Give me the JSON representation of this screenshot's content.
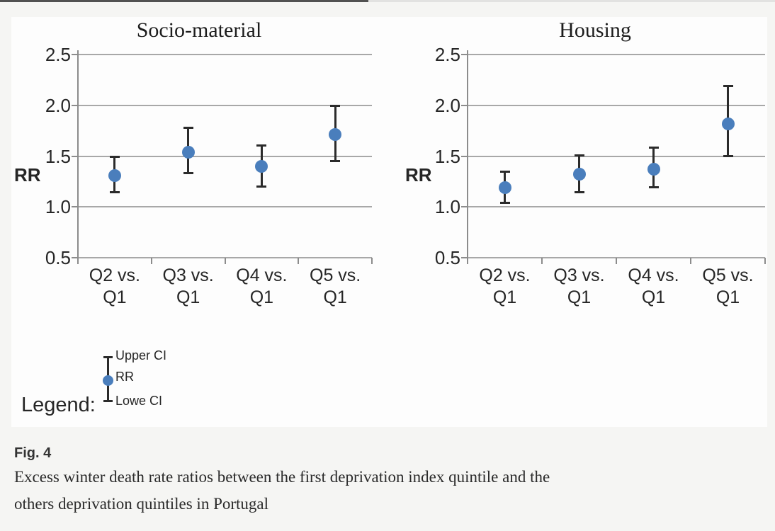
{
  "colors": {
    "marker_blue": "#4a7ebc",
    "error_bar": "#2b2b2b",
    "gridline": "#a8a8a8",
    "axis": "#8c8c8c"
  },
  "chart_data": [
    {
      "type": "scatter",
      "title": "Socio-material",
      "ylabel": "RR",
      "xlabel": "",
      "ylim": [
        0.5,
        2.5
      ],
      "yticks": [
        "2.5",
        "2.0",
        "1.5",
        "1.0",
        "0.5"
      ],
      "grid": true,
      "legend_position": "below-left",
      "categories": [
        "Q2 vs. Q1",
        "Q3 vs. Q1",
        "Q4 vs. Q1",
        "Q5 vs. Q1"
      ],
      "series": [
        {
          "name": "RR",
          "values": [
            1.31,
            1.54,
            1.4,
            1.71
          ]
        },
        {
          "name": "Upper CI",
          "values": [
            1.5,
            1.78,
            1.61,
            2.0
          ]
        },
        {
          "name": "Lowe CI",
          "values": [
            1.14,
            1.33,
            1.2,
            1.45
          ]
        }
      ]
    },
    {
      "type": "scatter",
      "title": "Housing",
      "ylabel": "RR",
      "xlabel": "",
      "ylim": [
        0.5,
        2.5
      ],
      "yticks": [
        "2.5",
        "2.0",
        "1.5",
        "1.0",
        "0.5"
      ],
      "grid": true,
      "legend_position": "below-left",
      "categories": [
        "Q2 vs. Q1",
        "Q3 vs. Q1",
        "Q4 vs. Q1",
        "Q5 vs. Q1"
      ],
      "series": [
        {
          "name": "RR",
          "values": [
            1.19,
            1.32,
            1.37,
            1.82
          ]
        },
        {
          "name": "Upper CI",
          "values": [
            1.35,
            1.51,
            1.59,
            2.19
          ]
        },
        {
          "name": "Lowe CI",
          "values": [
            1.04,
            1.14,
            1.19,
            1.5
          ]
        }
      ]
    }
  ],
  "legend": {
    "label": "Legend:",
    "items": [
      "Upper CI",
      "RR",
      "Lowe CI"
    ]
  },
  "caption": {
    "fig_label": "Fig. 4",
    "lines": [
      "Excess winter death rate ratios between the first deprivation index quintile and the",
      "others deprivation quintiles in Portugal"
    ]
  }
}
